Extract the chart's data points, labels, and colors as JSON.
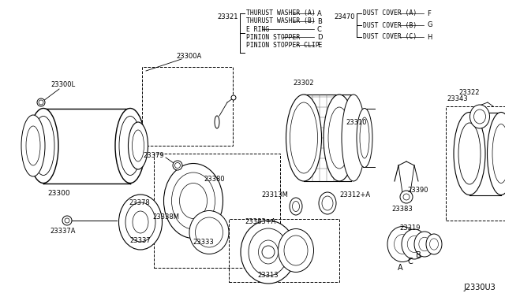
{
  "background_color": "#ffffff",
  "diagram_code": "J2330U3",
  "line_color": "#1a1a1a",
  "text_color": "#1a1a1a",
  "font_size": 6.5,
  "legend_left_ref": "23321",
  "legend_left_items": [
    [
      "THURUST WASHER (A)",
      "A"
    ],
    [
      "THURUST WASHER (B)",
      "B"
    ],
    [
      "E RING",
      "C"
    ],
    [
      "PINION STOPPER",
      "D"
    ],
    [
      "PINION STOPPER CLIP",
      "E"
    ]
  ],
  "legend_right_ref": "23470",
  "legend_right_items": [
    [
      "DUST COVER (A)",
      "F"
    ],
    [
      "DUST COVER (B)",
      "G"
    ],
    [
      "DUST COVER (C)",
      "H"
    ]
  ]
}
